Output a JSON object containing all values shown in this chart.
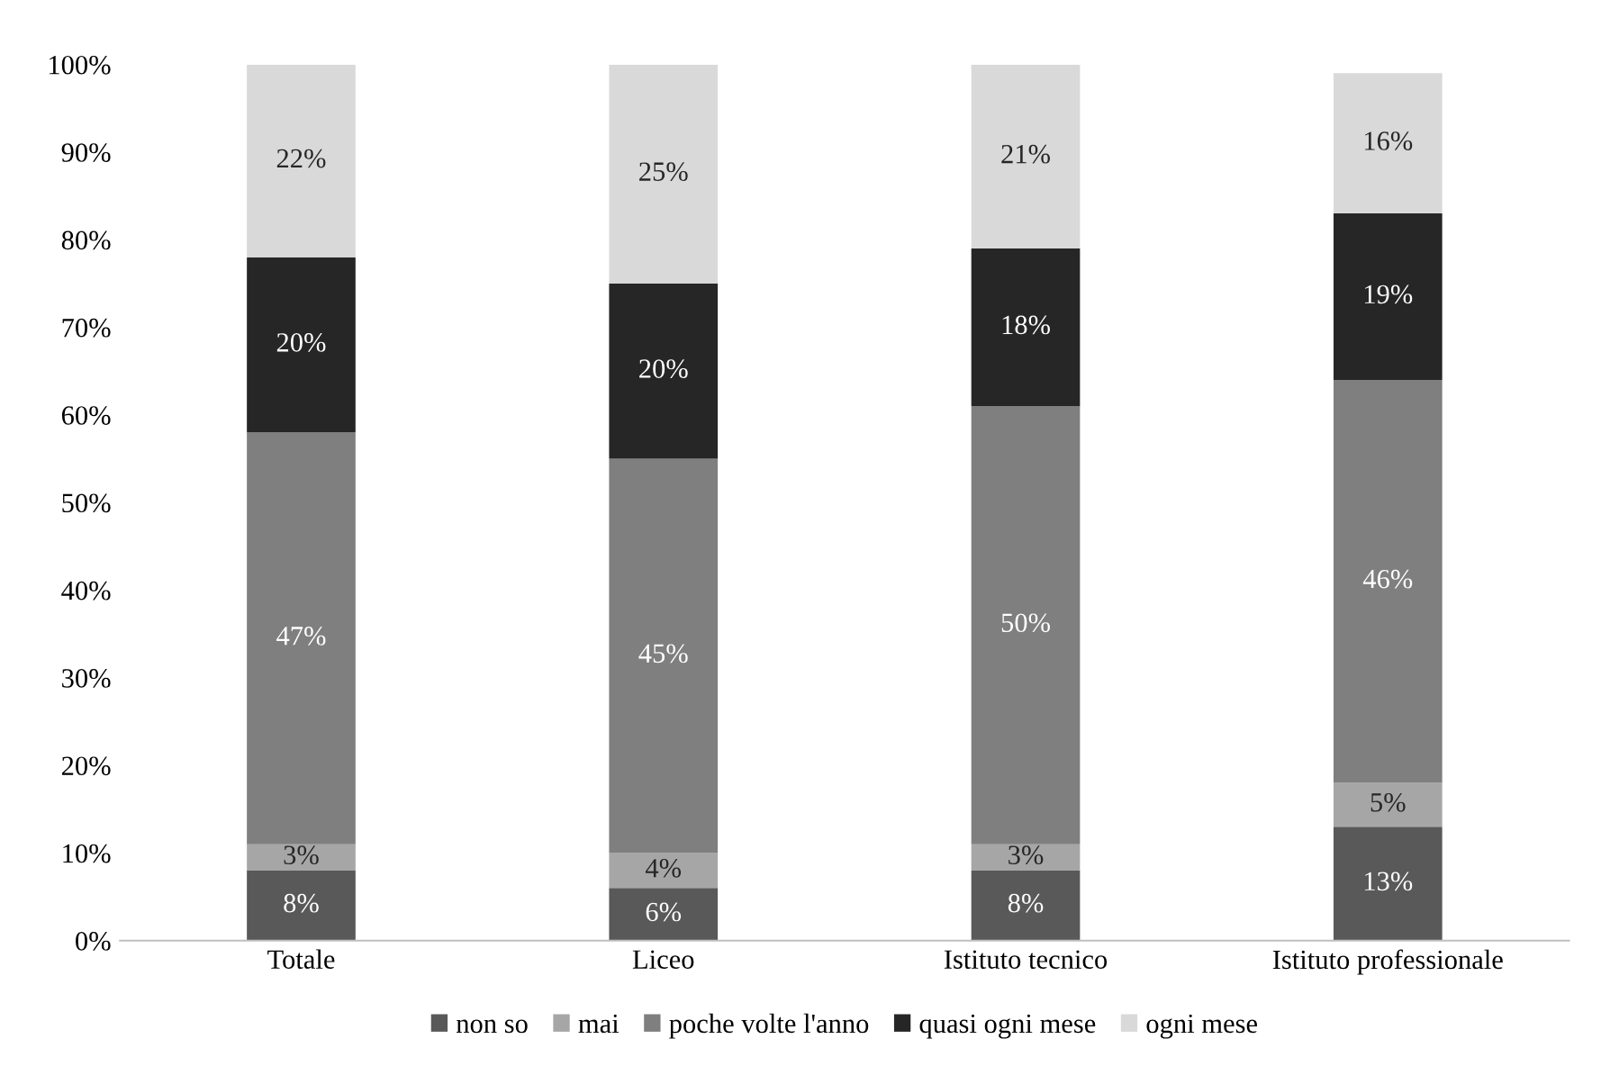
{
  "chart_data": {
    "type": "bar",
    "stacked": true,
    "categories": [
      "Totale",
      "Liceo",
      "Istituto tecnico",
      "Istituto professionale"
    ],
    "series": [
      {
        "name": "non so",
        "color": "#595959",
        "values": [
          8,
          6,
          8,
          13
        ],
        "value_labels": [
          "8%",
          "6%",
          "8%",
          "13%"
        ]
      },
      {
        "name": "mai",
        "color": "#a6a6a6",
        "values": [
          3,
          4,
          3,
          5
        ],
        "value_labels": [
          "3%",
          "4%",
          "3%",
          "5%"
        ]
      },
      {
        "name": "poche volte l'anno",
        "color": "#7f7f7f",
        "values": [
          47,
          45,
          50,
          46
        ],
        "value_labels": [
          "47%",
          "45%",
          "50%",
          "46%"
        ]
      },
      {
        "name": "quasi ogni mese",
        "color": "#262626",
        "values": [
          20,
          20,
          18,
          19
        ],
        "value_labels": [
          "20%",
          "20%",
          "18%",
          "19%"
        ]
      },
      {
        "name": "ogni mese",
        "color": "#d9d9d9",
        "values": [
          22,
          25,
          21,
          16
        ],
        "value_labels": [
          "22%",
          "25%",
          "21%",
          "16%"
        ]
      }
    ],
    "ylim": [
      0,
      100
    ],
    "yticks": [
      {
        "value": 0,
        "label": "0%"
      },
      {
        "value": 10,
        "label": "10%"
      },
      {
        "value": 20,
        "label": "20%"
      },
      {
        "value": 30,
        "label": "30%"
      },
      {
        "value": 40,
        "label": "40%"
      },
      {
        "value": 50,
        "label": "50%"
      },
      {
        "value": 60,
        "label": "60%"
      },
      {
        "value": 70,
        "label": "70%"
      },
      {
        "value": 80,
        "label": "80%"
      },
      {
        "value": 90,
        "label": "90%"
      },
      {
        "value": 100,
        "label": "100%"
      }
    ],
    "grid": false,
    "legend": "bottom"
  }
}
